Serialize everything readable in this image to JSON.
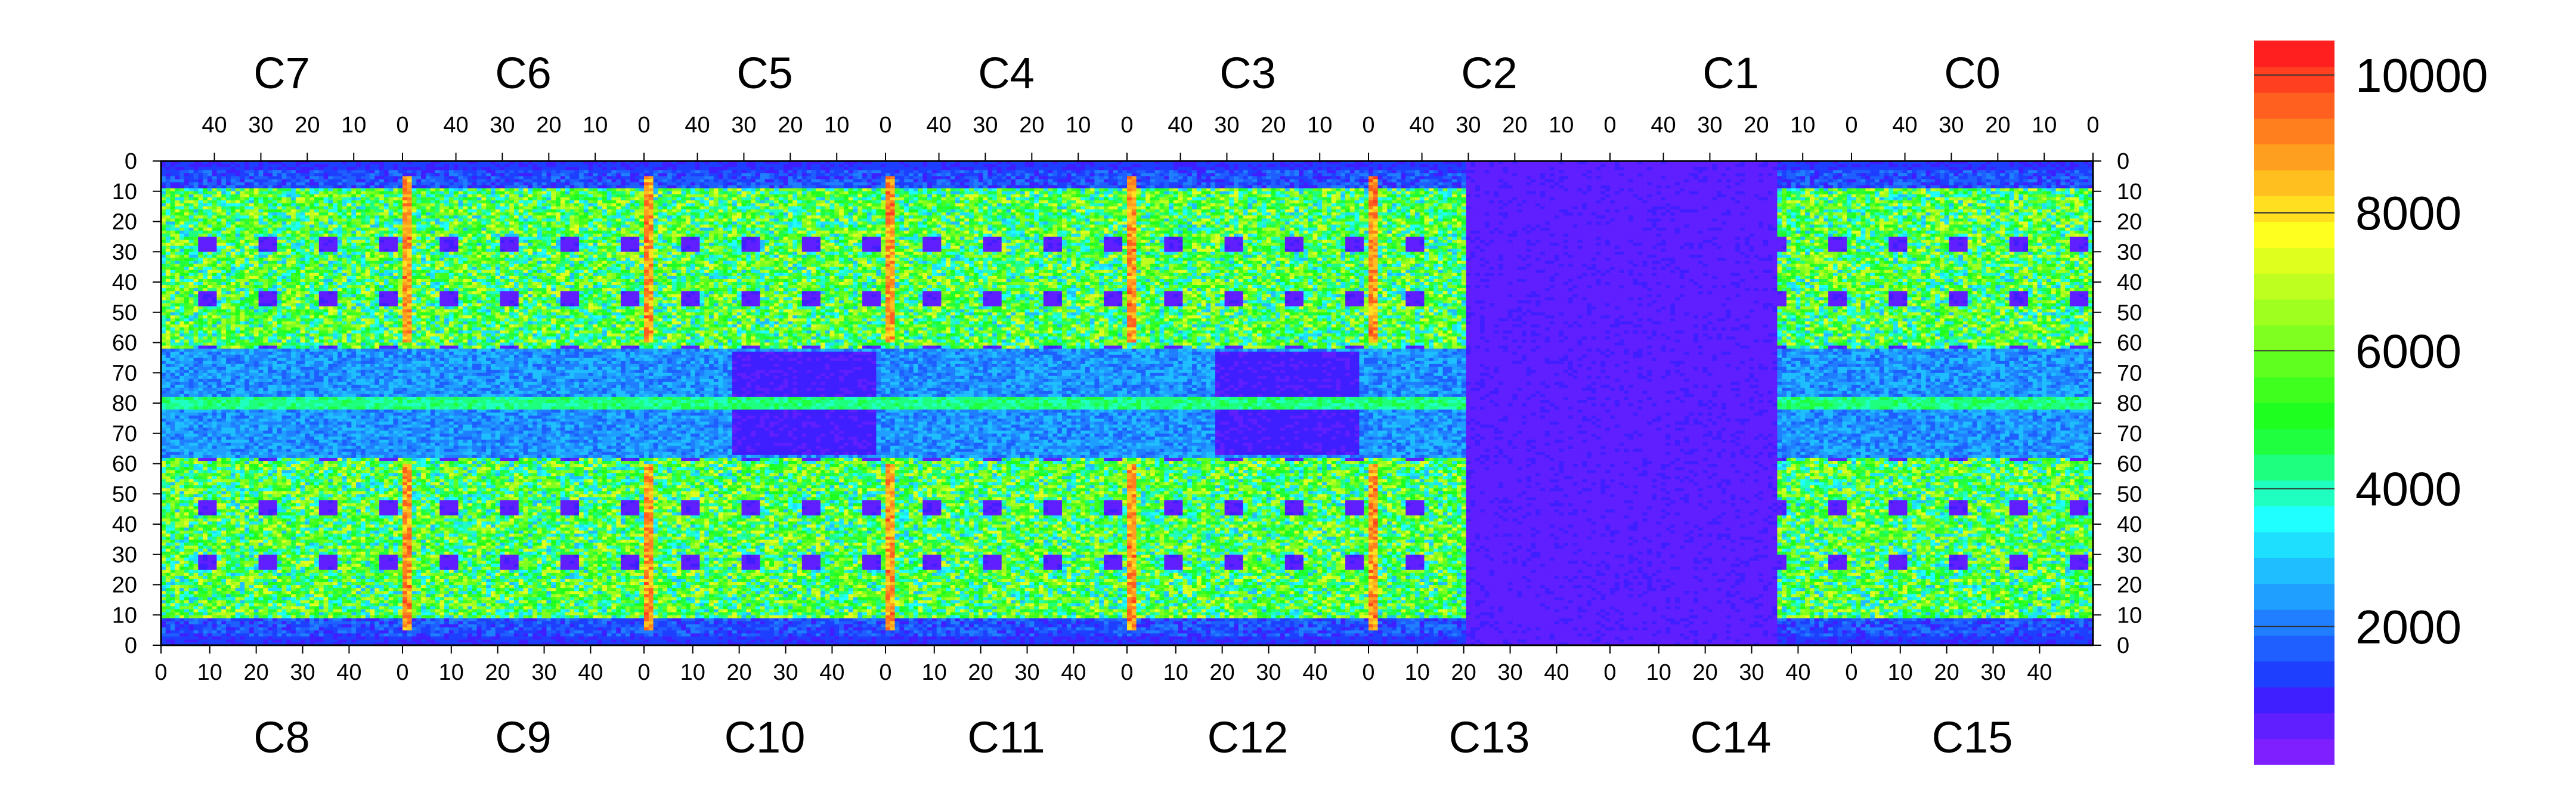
{
  "chart_data": {
    "type": "heatmap",
    "title": "",
    "xlabel": "",
    "ylabel": "",
    "top_chips": [
      "C7",
      "C6",
      "C5",
      "C4",
      "C3",
      "C2",
      "C1",
      "C0"
    ],
    "bottom_chips": [
      "C8",
      "C9",
      "C10",
      "C11",
      "C12",
      "C13",
      "C14",
      "C15"
    ],
    "x_tick_labels_top": [
      "40",
      "30",
      "20",
      "10",
      "0"
    ],
    "x_tick_labels_bottom": [
      "0",
      "10",
      "20",
      "30",
      "40"
    ],
    "x_tick_values_top": [
      40,
      30,
      20,
      10,
      0
    ],
    "x_tick_values_bottom": [
      0,
      10,
      20,
      30,
      40
    ],
    "y_tick_labels": [
      "0",
      "10",
      "20",
      "30",
      "40",
      "50",
      "60",
      "70",
      "80",
      "70",
      "60",
      "50",
      "40",
      "30",
      "20",
      "10",
      "0"
    ],
    "colorbar": {
      "min": 0,
      "max": 10500,
      "tick_labels": [
        "2000",
        "4000",
        "6000",
        "8000",
        "10000"
      ],
      "tick_values": [
        2000,
        4000,
        6000,
        8000,
        10000
      ],
      "colors": [
        "#7f1fff",
        "#5f1fff",
        "#3f1fff",
        "#1f3fff",
        "#1f5fff",
        "#1f7fff",
        "#1f9fff",
        "#1fbfff",
        "#1fdfff",
        "#1fffff",
        "#1fffbf",
        "#1fff7f",
        "#1fff3f",
        "#1fff1f",
        "#3fff1f",
        "#5fff1f",
        "#7fff1f",
        "#9fff1f",
        "#bfff1f",
        "#dfff1f",
        "#ffff1f",
        "#ffdf1f",
        "#ffbf1f",
        "#ff9f1f",
        "#ff7f1f",
        "#ff5f1f",
        "#ff3f1f",
        "#ff1f1f"
      ]
    },
    "features": {
      "background_level": 900,
      "low_occupancy_level": 500,
      "column_band_level": 9800,
      "stripe_level": 3900,
      "high_chip_level": 6200,
      "max_level": 10000
    },
    "grid": false,
    "legend": "colorbar-right"
  }
}
